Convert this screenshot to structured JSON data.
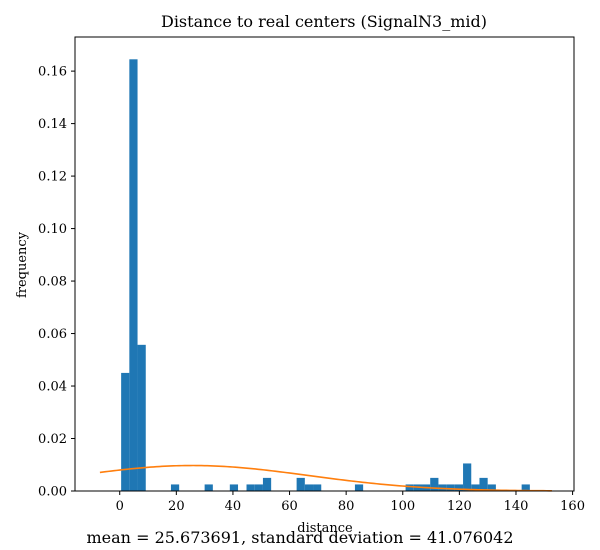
{
  "chart_data": {
    "type": "bar",
    "title": "Distance to real centers (SignalN3_mid)",
    "xlabel": "distance",
    "ylabel": "frequency",
    "xlim": [
      -15.8,
      160.5
    ],
    "ylim": [
      0,
      0.173
    ],
    "xticks": [
      0,
      20,
      40,
      60,
      80,
      100,
      120,
      140,
      160
    ],
    "yticks": [
      0.0,
      0.02,
      0.04,
      0.06,
      0.08,
      0.1,
      0.12,
      0.14,
      0.16
    ],
    "ytick_labels": [
      "0.00",
      "0.02",
      "0.04",
      "0.06",
      "0.08",
      "0.10",
      "0.12",
      "0.14",
      "0.16"
    ],
    "bar_color": "#1f77b4",
    "curve_color": "#ff7f0e",
    "histogram": {
      "bin_width": 2.9,
      "bin_starts": [
        0.5,
        3.4,
        6.3,
        18.1,
        30.0,
        38.9,
        44.8,
        47.7,
        50.6,
        62.5,
        65.4,
        68.3,
        83.1,
        101.0,
        103.9,
        106.8,
        109.7,
        112.6,
        115.5,
        118.4,
        121.3,
        124.2,
        127.1,
        130.0,
        142.0
      ],
      "values": [
        0.045,
        0.1645,
        0.0557,
        0.0025,
        0.0025,
        0.0025,
        0.0025,
        0.0025,
        0.005,
        0.005,
        0.0025,
        0.0025,
        0.0025,
        0.0025,
        0.0025,
        0.0025,
        0.005,
        0.0025,
        0.0025,
        0.0025,
        0.0105,
        0.0025,
        0.005,
        0.0025,
        0.0025
      ]
    },
    "curve": {
      "mean": 25.673691,
      "std": 41.076042,
      "x_range": [
        -7.0,
        152.7
      ]
    },
    "caption": "mean = 25.673691, standard deviation = 41.076042"
  }
}
